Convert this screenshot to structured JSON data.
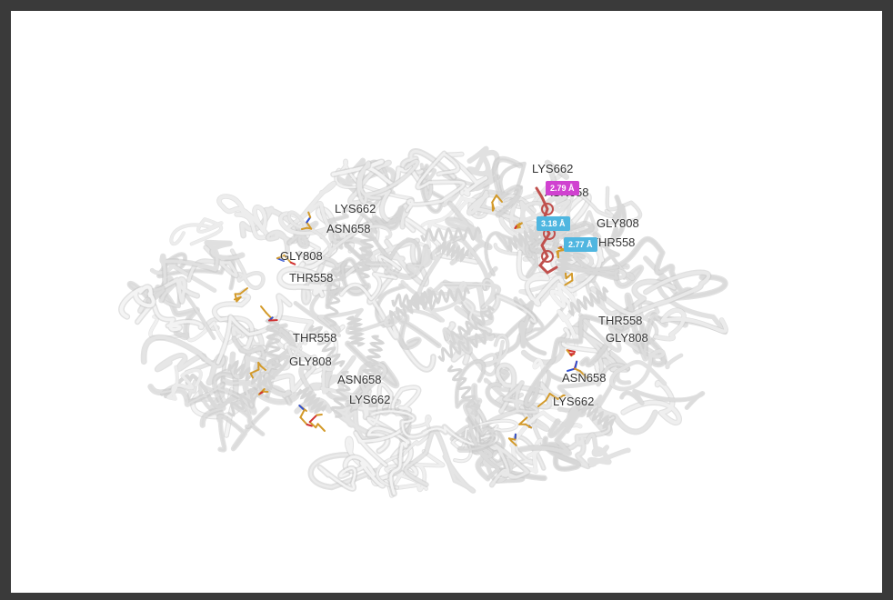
{
  "residue_labels": {
    "r1": "LYS662",
    "r2": "ASN658",
    "r3": "GLY808",
    "r4": "THR558",
    "r5": "LYS662",
    "r6": "ASN658",
    "r7": "GLY808",
    "r8": "THR558",
    "r9": "THR558",
    "r10": "GLY808",
    "r11": "ASN658",
    "r12": "LYS662",
    "r13": "THR558",
    "r14": "GLY808",
    "r15": "ASN658",
    "r16": "LYS662"
  },
  "distance_labels": {
    "d1": "2.79 Å",
    "d2": "3.18 Å",
    "d3": "2.77 Å"
  },
  "colors": {
    "ribbon": "#e8e8e8",
    "residue_carbon": "#d39a2a",
    "ligand": "#c0504d",
    "hbond_cyan": "#4fb6e0",
    "hbond_magenta": "#d042d0",
    "frame_border": "#3a3a3a"
  }
}
